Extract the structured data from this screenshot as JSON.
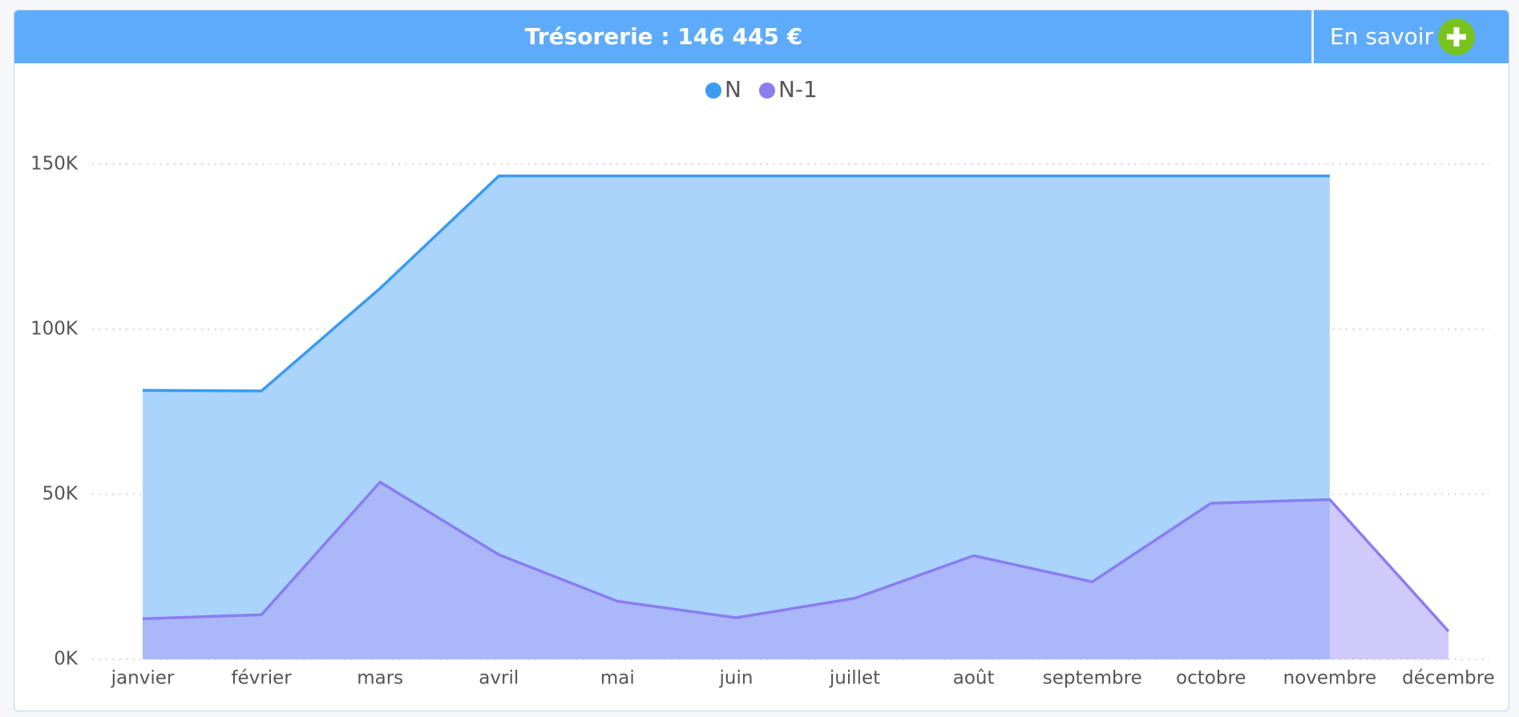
{
  "header": {
    "title": "Trésorerie :  146 445 €",
    "button": "En savoir"
  },
  "chart_data": {
    "type": "area",
    "categories": [
      "janvier",
      "février",
      "mars",
      "avril",
      "mai",
      "juin",
      "juillet",
      "août",
      "septembre",
      "octobre",
      "novembre",
      "décembre"
    ],
    "series": [
      {
        "name": "N",
        "color": "#3a9bef",
        "fill": "#aad4fc",
        "values": [
          81500,
          81300,
          112400,
          146445,
          146445,
          146445,
          146445,
          146445,
          146445,
          146445,
          146445,
          null
        ]
      },
      {
        "name": "N-1",
        "color": "#8a7ef0",
        "fill": "#a99ff6",
        "values": [
          12300,
          13500,
          53700,
          31700,
          17600,
          12600,
          18500,
          31400,
          23500,
          47300,
          48400,
          8500
        ]
      }
    ],
    "ylim": [
      0,
      150000
    ],
    "yticks": [
      {
        "value": 0,
        "label": "0K"
      },
      {
        "value": 50000,
        "label": "50K"
      },
      {
        "value": 100000,
        "label": "100K"
      },
      {
        "value": 150000,
        "label": "150K"
      }
    ],
    "grid": true,
    "legend": "top"
  }
}
